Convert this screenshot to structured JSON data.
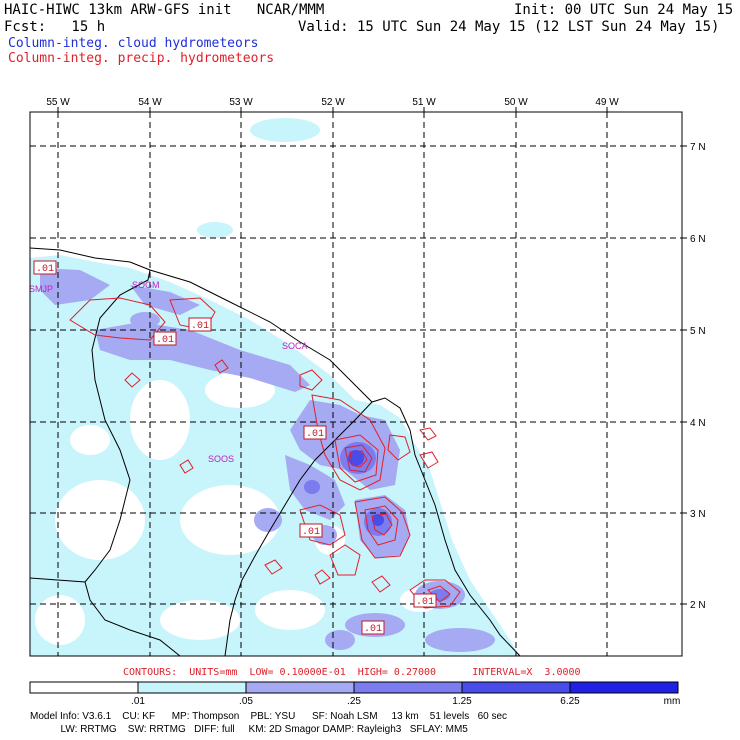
{
  "header": {
    "title_left": "HAIC-HIWC 13km ARW-GFS init   NCAR/MMM",
    "init": "Init: 00 UTC Sun 24 May 15",
    "fcst": "Fcst:   15 h",
    "valid": "Valid: 15 UTC Sun 24 May 15 (12 LST Sun 24 May 15)",
    "legend_cloud": "Column-integ. cloud hydrometeors",
    "legend_precip": "Column-integ. precip. hydrometeors"
  },
  "map": {
    "lon_labels": [
      "55 W",
      "54 W",
      "53 W",
      "52 W",
      "51 W",
      "50 W",
      "49 W"
    ],
    "lat_labels": [
      "7 N",
      "6 N",
      "5 N",
      "4 N",
      "3 N",
      "2 N"
    ],
    "stations": [
      "SMJP",
      "SOGM",
      "SOCA",
      "SOOS"
    ],
    "contour_labels": [
      ".01",
      ".01",
      ".01",
      ".01",
      ".01",
      ".01",
      ".01"
    ]
  },
  "contour_info": "CONTOURS:  UNITS=mm  LOW= 0.10000E-01  HIGH= 0.27000      INTERVAL=X  3.0000",
  "colorbar": {
    "ticks": [
      ".01",
      ".05",
      ".25",
      "1.25",
      "6.25"
    ],
    "unit": "mm",
    "colors": [
      "#ffffff",
      "#c8f4fb",
      "#a6aaf2",
      "#7a7cf0",
      "#4a4cea",
      "#2020e6"
    ]
  },
  "model_info": {
    "line1": "Model Info: V3.6.1    CU: KF      MP: Thompson    PBL: YSU      SF: Noah LSM     13 km    51 levels   60 sec",
    "line2": "           LW: RRTMG    SW: RRTMG   DIFF: full     KM: 2D Smagor DAMP: Rayleigh3   SFLAY: MM5"
  }
}
